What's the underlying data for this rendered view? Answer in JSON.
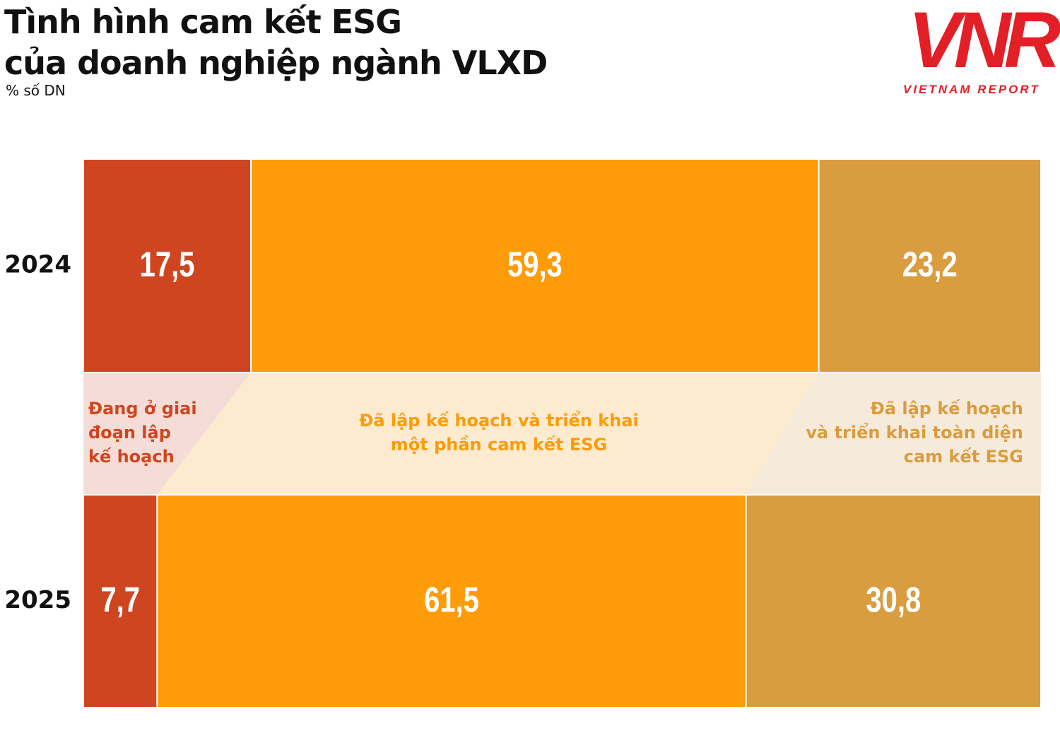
{
  "chart_data": {
    "type": "stacked-bar-horizontal",
    "title": "Tình hình cam kết ESG\ncủa doanh nghiệp ngành VLXD",
    "subtitle": "% số DN",
    "categories": [
      "2024",
      "2025"
    ],
    "xlim": [
      0,
      100
    ],
    "series": [
      {
        "name": "Đang ở giai\nđoạn lập\nkế hoạch",
        "color": "#cf4520",
        "tint": "#f5dcd6",
        "values": [
          17.5,
          7.7
        ],
        "value_labels": [
          "17,5",
          "7,7"
        ]
      },
      {
        "name": "Đã lập kế hoạch và triển khai\nmột phần cam kết ESG",
        "color": "#fd9b08",
        "tint": "#fdebd0",
        "values": [
          59.3,
          61.5
        ],
        "value_labels": [
          "59,3",
          "61,5"
        ]
      },
      {
        "name": "Đã lập kế hoạch\nvà triển khai toàn diện\ncam kết ESG",
        "color": "#d99c3e",
        "tint": "#f6eadb",
        "values": [
          23.2,
          30.8
        ],
        "value_labels": [
          "23,2",
          "30,8"
        ]
      }
    ]
  },
  "logo": {
    "mark": "VNR",
    "text": "VIETNAM REPORT"
  }
}
